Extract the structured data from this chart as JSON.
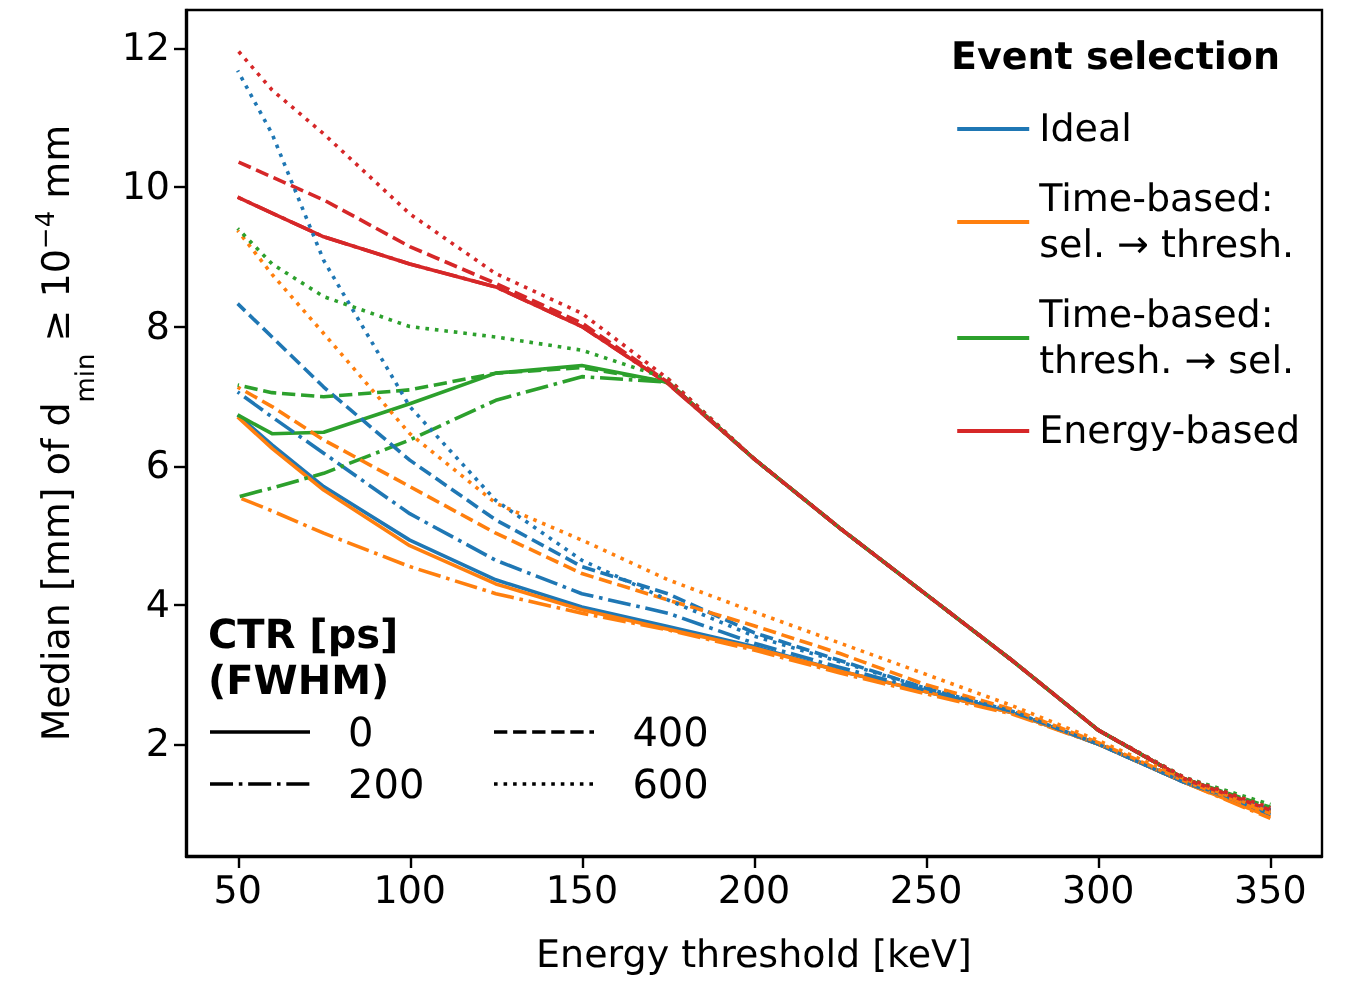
{
  "chart_data": {
    "type": "line",
    "xlabel": "Energy threshold [keV]",
    "ylabel": "Median [mm] of d$_{min}$ ≥ 10$^{−4}$ mm",
    "legend_title": "Event selection",
    "legend": "top right",
    "grid": false,
    "marker": "none",
    "x": [
      50,
      60,
      75,
      100,
      125,
      150,
      175,
      200,
      225,
      250,
      275,
      300,
      325,
      350
    ],
    "xlim": [
      35,
      365
    ],
    "xticks": [
      50,
      100,
      150,
      200,
      250,
      300,
      350
    ],
    "ylim": [
      0.39,
      12.55
    ],
    "yticks": [
      2,
      4,
      6,
      8,
      10,
      12
    ],
    "annotations": [
      "CTR [ps]\n(FWHM)",
      "0",
      "200",
      "400",
      "600"
    ],
    "series": [
      {
        "name": "Ideal",
        "color": "#1f77b4",
        "line_style": "solid",
        "values": [
          6.73,
          6.3,
          5.7,
          4.93,
          4.36,
          3.97,
          3.69,
          3.4,
          3.05,
          2.75,
          2.45,
          2.0,
          1.45,
          0.98
        ]
      },
      {
        "color": "#1f77b4",
        "line_style": "dashdot",
        "values": [
          7.06,
          6.7,
          6.18,
          5.31,
          4.64,
          4.16,
          3.88,
          3.45,
          3.1,
          2.77,
          2.45,
          2.0,
          1.45,
          0.99
        ]
      },
      {
        "color": "#1f77b4",
        "line_style": "dashed",
        "values": [
          8.33,
          7.85,
          7.13,
          6.08,
          5.22,
          4.55,
          4.16,
          3.6,
          3.2,
          2.8,
          2.47,
          2.0,
          1.45,
          1.02
        ]
      },
      {
        "color": "#1f77b4",
        "line_style": "dotted",
        "values": [
          11.68,
          10.77,
          8.95,
          6.85,
          5.5,
          4.64,
          4.07,
          3.55,
          3.18,
          2.8,
          2.47,
          2.0,
          1.45,
          1.06
        ]
      },
      {
        "name": "Time-based:\nsel. → thresh.",
        "color": "#ff7f0e",
        "line_style": "solid",
        "values": [
          6.7,
          6.25,
          5.65,
          4.85,
          4.3,
          3.93,
          3.65,
          3.38,
          3.05,
          2.75,
          2.45,
          2.0,
          1.45,
          0.95
        ]
      },
      {
        "color": "#ff7f0e",
        "line_style": "dashdot",
        "values": [
          5.55,
          5.35,
          5.03,
          4.55,
          4.16,
          3.88,
          3.64,
          3.35,
          3.02,
          2.72,
          2.43,
          2.0,
          1.45,
          0.93
        ]
      },
      {
        "color": "#ff7f0e",
        "line_style": "dashed",
        "values": [
          7.13,
          6.85,
          6.37,
          5.7,
          5.03,
          4.45,
          4.07,
          3.7,
          3.3,
          2.85,
          2.5,
          2.02,
          1.47,
          1.0
        ]
      },
      {
        "color": "#ff7f0e",
        "line_style": "dotted",
        "values": [
          9.38,
          8.75,
          7.9,
          6.46,
          5.46,
          4.93,
          4.36,
          3.9,
          3.45,
          3.0,
          2.55,
          2.05,
          1.5,
          1.02
        ]
      },
      {
        "name": "Time-based:\nthresh. → sel.",
        "color": "#2ca02c",
        "line_style": "solid",
        "values": [
          6.73,
          6.46,
          6.48,
          6.89,
          7.33,
          7.44,
          7.2,
          6.1,
          5.1,
          4.15,
          3.2,
          2.2,
          1.5,
          1.05
        ]
      },
      {
        "color": "#2ca02c",
        "line_style": "dashdot",
        "values": [
          5.55,
          5.68,
          5.89,
          6.37,
          6.94,
          7.28,
          7.2,
          6.1,
          5.1,
          4.15,
          3.2,
          2.2,
          1.5,
          1.04
        ]
      },
      {
        "color": "#2ca02c",
        "line_style": "dashed",
        "values": [
          7.16,
          7.05,
          6.99,
          7.09,
          7.33,
          7.41,
          7.2,
          6.1,
          5.1,
          4.15,
          3.2,
          2.2,
          1.5,
          1.09
        ]
      },
      {
        "color": "#2ca02c",
        "line_style": "dotted",
        "values": [
          9.41,
          8.9,
          8.43,
          8.0,
          7.85,
          7.66,
          7.25,
          6.1,
          5.1,
          4.15,
          3.2,
          2.2,
          1.52,
          1.13
        ]
      },
      {
        "name": "Energy-based",
        "color": "#d62728",
        "line_style": "solid",
        "values": [
          9.86,
          9.63,
          9.29,
          8.9,
          8.57,
          8.0,
          7.18,
          6.1,
          5.1,
          4.15,
          3.2,
          2.2,
          1.5,
          1.05
        ]
      },
      {
        "color": "#d62728",
        "line_style": "dashdot",
        "values": [
          9.86,
          9.63,
          9.29,
          8.9,
          8.57,
          8.0,
          7.18,
          6.1,
          5.1,
          4.15,
          3.2,
          2.2,
          1.5,
          1.05
        ]
      },
      {
        "color": "#d62728",
        "line_style": "dashed",
        "values": [
          10.37,
          10.15,
          9.82,
          9.15,
          8.62,
          8.05,
          7.2,
          6.1,
          5.1,
          4.15,
          3.2,
          2.2,
          1.5,
          1.05
        ]
      },
      {
        "color": "#d62728",
        "line_style": "dotted",
        "values": [
          11.97,
          11.4,
          10.77,
          9.62,
          8.76,
          8.19,
          7.25,
          6.1,
          5.1,
          4.15,
          3.2,
          2.2,
          1.52,
          1.08
        ]
      }
    ]
  }
}
